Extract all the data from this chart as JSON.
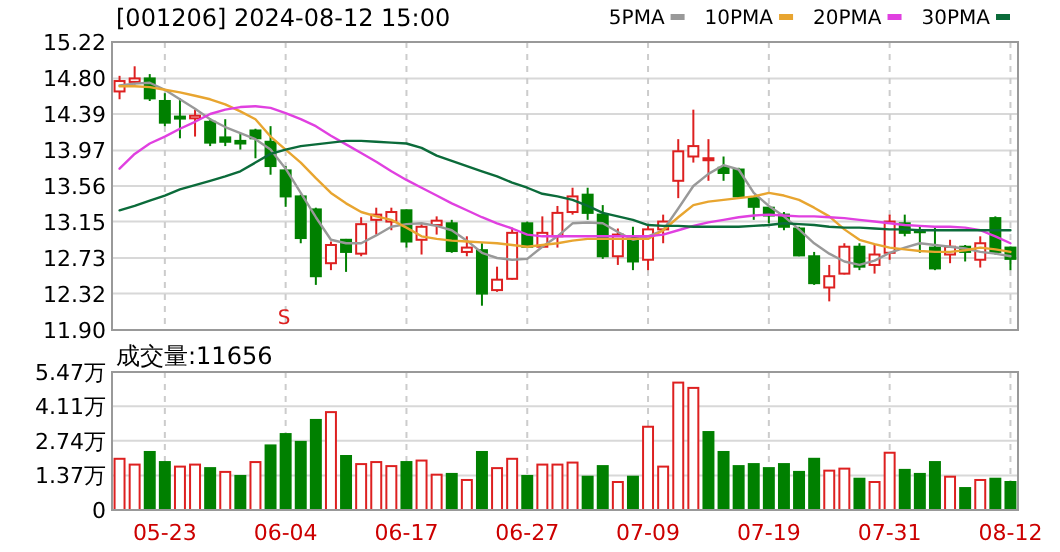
{
  "chart_data": [
    {
      "type": "candlestick",
      "title": "[001206] 2024-08-12 15:00",
      "categories": [
        null,
        null,
        null,
        null,
        null,
        null,
        null,
        null,
        null,
        null,
        null,
        null,
        null,
        null,
        null,
        null,
        null,
        null,
        null,
        null,
        null,
        null,
        null,
        null,
        null,
        null,
        null,
        null,
        null,
        null,
        null,
        null,
        null,
        null,
        null,
        null,
        null,
        null,
        null,
        null,
        null,
        null,
        null,
        null,
        null,
        null,
        null,
        null,
        null,
        null,
        null,
        null,
        null,
        null,
        null,
        null,
        null,
        null,
        null,
        null
      ],
      "ohlc": [
        [
          14.65,
          14.83,
          14.56,
          14.77
        ],
        [
          14.76,
          14.94,
          14.73,
          14.8
        ],
        [
          14.8,
          14.85,
          14.54,
          14.57
        ],
        [
          14.54,
          14.63,
          14.25,
          14.29
        ],
        [
          14.36,
          14.57,
          14.11,
          14.34
        ],
        [
          14.34,
          14.44,
          14.13,
          14.37
        ],
        [
          14.3,
          14.34,
          14.02,
          14.06
        ],
        [
          14.12,
          14.33,
          14.02,
          14.07
        ],
        [
          14.08,
          14.17,
          13.98,
          14.05
        ],
        [
          14.2,
          14.22,
          13.88,
          14.11
        ],
        [
          14.07,
          14.25,
          13.69,
          13.79
        ],
        [
          13.74,
          13.79,
          13.32,
          13.44
        ],
        [
          13.44,
          13.46,
          12.9,
          12.96
        ],
        [
          13.29,
          13.31,
          12.42,
          12.52
        ],
        [
          12.67,
          12.92,
          12.59,
          12.88
        ],
        [
          12.94,
          12.95,
          12.57,
          12.8
        ],
        [
          12.78,
          13.2,
          12.75,
          13.12
        ],
        [
          13.17,
          13.31,
          13.0,
          13.23
        ],
        [
          13.15,
          13.31,
          13.05,
          13.26
        ],
        [
          13.28,
          13.29,
          12.85,
          12.92
        ],
        [
          12.94,
          13.13,
          12.77,
          13.09
        ],
        [
          13.11,
          13.21,
          13.0,
          13.16
        ],
        [
          13.13,
          13.17,
          12.79,
          12.81
        ],
        [
          12.8,
          12.98,
          12.75,
          12.85
        ],
        [
          12.82,
          12.9,
          12.18,
          12.32
        ],
        [
          12.36,
          12.63,
          12.34,
          12.48
        ],
        [
          12.49,
          13.08,
          12.48,
          13.02
        ],
        [
          13.13,
          13.15,
          12.85,
          12.86
        ],
        [
          12.86,
          13.21,
          12.85,
          13.02
        ],
        [
          12.98,
          13.33,
          12.85,
          13.25
        ],
        [
          13.26,
          13.54,
          13.23,
          13.44
        ],
        [
          13.46,
          13.54,
          13.17,
          13.25
        ],
        [
          13.23,
          13.34,
          12.72,
          12.75
        ],
        [
          12.75,
          13.07,
          12.65,
          13.0
        ],
        [
          12.98,
          13.09,
          12.59,
          12.69
        ],
        [
          12.71,
          13.11,
          12.59,
          13.06
        ],
        [
          13.06,
          13.23,
          12.9,
          13.15
        ],
        [
          13.62,
          14.1,
          13.42,
          13.96
        ],
        [
          13.9,
          14.44,
          13.83,
          14.02
        ],
        [
          13.87,
          14.1,
          13.62,
          13.88
        ],
        [
          13.77,
          13.9,
          13.62,
          13.71
        ],
        [
          13.75,
          13.77,
          13.42,
          13.44
        ],
        [
          13.42,
          13.44,
          13.17,
          13.32
        ],
        [
          13.31,
          13.32,
          13.13,
          13.22
        ],
        [
          13.23,
          13.26,
          13.05,
          13.09
        ],
        [
          13.07,
          13.09,
          12.75,
          12.76
        ],
        [
          12.75,
          12.8,
          12.42,
          12.44
        ],
        [
          12.39,
          12.65,
          12.23,
          12.52
        ],
        [
          12.55,
          12.9,
          12.54,
          12.86
        ],
        [
          12.86,
          12.9,
          12.59,
          12.63
        ],
        [
          12.65,
          12.88,
          12.55,
          12.77
        ],
        [
          12.79,
          13.23,
          12.71,
          13.15
        ],
        [
          13.13,
          13.23,
          12.98,
          13.02
        ],
        [
          13.05,
          13.09,
          12.79,
          13.04
        ],
        [
          12.85,
          13.09,
          12.59,
          12.61
        ],
        [
          12.77,
          12.94,
          12.67,
          12.86
        ],
        [
          12.86,
          12.88,
          12.69,
          12.8
        ],
        [
          12.71,
          12.98,
          12.62,
          12.9
        ],
        [
          13.19,
          13.21,
          12.77,
          12.8
        ],
        [
          12.85,
          12.86,
          12.59,
          12.72
        ]
      ],
      "colors": [
        "#dd2020",
        "#dd2020",
        "#008000",
        "#008000",
        "#008000",
        "#dd2020",
        "#008000",
        "#008000",
        "#008000",
        "#008000",
        "#008000",
        "#008000",
        "#008000",
        "#008000",
        "#dd2020",
        "#008000",
        "#dd2020",
        "#dd2020",
        "#dd2020",
        "#008000",
        "#dd2020",
        "#dd2020",
        "#008000",
        "#dd2020",
        "#008000",
        "#dd2020",
        "#dd2020",
        "#008000",
        "#dd2020",
        "#dd2020",
        "#dd2020",
        "#008000",
        "#008000",
        "#dd2020",
        "#008000",
        "#dd2020",
        "#dd2020",
        "#dd2020",
        "#dd2020",
        "#dd2020",
        "#008000",
        "#008000",
        "#008000",
        "#008000",
        "#008000",
        "#008000",
        "#008000",
        "#dd2020",
        "#dd2020",
        "#008000",
        "#dd2020",
        "#dd2020",
        "#008000",
        "#008000",
        "#008000",
        "#dd2020",
        "#008000",
        "#dd2020",
        "#008000",
        "#008000"
      ],
      "series": [
        {
          "name": "5PMA",
          "type": "line",
          "color": "#999999",
          "values": [
            14.72,
            14.74,
            14.75,
            14.67,
            14.56,
            14.45,
            14.33,
            14.24,
            14.17,
            14.1,
            13.98,
            13.76,
            13.48,
            13.2,
            12.94,
            12.9,
            12.9,
            12.99,
            13.09,
            13.12,
            13.13,
            13.1,
            13.05,
            12.93,
            12.79,
            12.73,
            12.71,
            12.72,
            12.86,
            12.98,
            13.13,
            13.14,
            13.13,
            13.03,
            12.94,
            12.98,
            13.05,
            13.3,
            13.56,
            13.7,
            13.8,
            13.75,
            13.48,
            13.33,
            13.21,
            13.06,
            12.9,
            12.78,
            12.69,
            12.65,
            12.7,
            12.79,
            12.85,
            12.9,
            12.88,
            12.86,
            12.84,
            12.8,
            12.78,
            12.75
          ]
        },
        {
          "name": "10PMA",
          "type": "line",
          "color": "#e8a530",
          "values": [
            14.71,
            14.71,
            14.7,
            14.67,
            14.64,
            14.6,
            14.56,
            14.5,
            14.42,
            14.33,
            14.13,
            13.98,
            13.83,
            13.65,
            13.48,
            13.36,
            13.26,
            13.21,
            13.17,
            13.08,
            12.98,
            12.95,
            12.93,
            12.92,
            12.91,
            12.9,
            12.88,
            12.86,
            12.88,
            12.9,
            12.93,
            12.95,
            12.95,
            12.95,
            12.95,
            12.95,
            13.05,
            13.2,
            13.34,
            13.38,
            13.4,
            13.42,
            13.44,
            13.48,
            13.45,
            13.4,
            13.31,
            13.21,
            13.06,
            12.94,
            12.89,
            12.85,
            12.83,
            12.81,
            12.8,
            12.8,
            12.82,
            12.85,
            12.83,
            12.8
          ]
        },
        {
          "name": "20PMA",
          "type": "line",
          "color": "#e040e0",
          "values": [
            13.76,
            13.93,
            14.05,
            14.13,
            14.22,
            14.3,
            14.39,
            14.44,
            14.47,
            14.48,
            14.46,
            14.4,
            14.33,
            14.25,
            14.14,
            14.04,
            13.94,
            13.84,
            13.73,
            13.63,
            13.54,
            13.45,
            13.36,
            13.28,
            13.2,
            13.13,
            13.07,
            13.0,
            12.98,
            12.98,
            12.98,
            12.98,
            12.98,
            12.98,
            12.98,
            12.98,
            13.0,
            13.05,
            13.1,
            13.14,
            13.17,
            13.2,
            13.22,
            13.23,
            13.22,
            13.21,
            13.21,
            13.2,
            13.19,
            13.17,
            13.15,
            13.13,
            13.11,
            13.1,
            13.09,
            13.09,
            13.08,
            13.05,
            12.98,
            12.9
          ]
        },
        {
          "name": "30PMA",
          "type": "line",
          "color": "#0b6b3a",
          "values": [
            13.28,
            13.33,
            13.39,
            13.45,
            13.52,
            13.57,
            13.62,
            13.67,
            13.73,
            13.83,
            13.93,
            13.98,
            14.02,
            14.04,
            14.06,
            14.08,
            14.08,
            14.07,
            14.06,
            14.05,
            14.0,
            13.91,
            13.85,
            13.79,
            13.73,
            13.67,
            13.6,
            13.54,
            13.47,
            13.44,
            13.4,
            13.33,
            13.25,
            13.21,
            13.17,
            13.11,
            13.1,
            13.1,
            13.09,
            13.09,
            13.09,
            13.09,
            13.1,
            13.11,
            13.13,
            13.12,
            13.11,
            13.09,
            13.08,
            13.08,
            13.07,
            13.06,
            13.06,
            13.05,
            13.05,
            13.05,
            13.05,
            13.05,
            13.05,
            13.05
          ]
        }
      ],
      "ylim": [
        11.9,
        15.22
      ],
      "yticks": [
        {
          "value": 11.9,
          "label": "11.90"
        },
        12.32,
        12.73,
        13.15,
        13.56,
        13.97,
        14.39,
        {
          "value": 14.8,
          "label": "14.80"
        },
        15.22
      ],
      "grid": true,
      "legend": "top right",
      "tick_labels": "y",
      "annotations": [
        "S"
      ]
    },
    {
      "type": "bar",
      "title": "成交量:11656",
      "categories": [
        null,
        null,
        null,
        "05-23",
        null,
        null,
        null,
        null,
        null,
        null,
        null,
        "06-04",
        null,
        null,
        null,
        null,
        null,
        null,
        null,
        "06-17",
        null,
        null,
        null,
        null,
        null,
        null,
        null,
        "06-27",
        null,
        null,
        null,
        null,
        null,
        null,
        null,
        "07-09",
        null,
        null,
        null,
        null,
        null,
        null,
        null,
        "07-19",
        null,
        null,
        null,
        null,
        null,
        null,
        null,
        "07-31",
        null,
        null,
        null,
        null,
        null,
        null,
        null,
        "08-12"
      ],
      "values": [
        2.03,
        1.8,
        2.3,
        1.9,
        1.72,
        1.8,
        1.66,
        1.51,
        1.35,
        1.9,
        2.56,
        3.01,
        2.7,
        3.57,
        3.88,
        2.14,
        1.82,
        1.9,
        1.74,
        1.9,
        1.96,
        1.4,
        1.43,
        1.19,
        2.3,
        1.66,
        2.03,
        1.35,
        1.8,
        1.8,
        1.88,
        1.32,
        1.74,
        1.11,
        1.32,
        3.3,
        1.72,
        5.05,
        4.84,
        3.09,
        2.3,
        1.74,
        1.82,
        1.66,
        1.82,
        1.51,
        2.03,
        1.56,
        1.64,
        1.24,
        1.11,
        2.27,
        1.59,
        1.43,
        1.9,
        1.32,
        0.87,
        1.19,
        1.24,
        1.11
      ],
      "colors": [
        "#dd2020",
        "#dd2020",
        "#008000",
        "#008000",
        "#dd2020",
        "#dd2020",
        "#008000",
        "#dd2020",
        "#008000",
        "#dd2020",
        "#008000",
        "#008000",
        "#008000",
        "#008000",
        "#dd2020",
        "#008000",
        "#dd2020",
        "#dd2020",
        "#dd2020",
        "#008000",
        "#dd2020",
        "#dd2020",
        "#008000",
        "#dd2020",
        "#008000",
        "#dd2020",
        "#dd2020",
        "#008000",
        "#dd2020",
        "#dd2020",
        "#dd2020",
        "#008000",
        "#008000",
        "#dd2020",
        "#008000",
        "#dd2020",
        "#dd2020",
        "#dd2020",
        "#dd2020",
        "#008000",
        "#008000",
        "#008000",
        "#008000",
        "#008000",
        "#008000",
        "#008000",
        "#008000",
        "#dd2020",
        "#dd2020",
        "#008000",
        "#dd2020",
        "#dd2020",
        "#008000",
        "#008000",
        "#008000",
        "#dd2020",
        "#008000",
        "#dd2020",
        "#008000",
        "#008000"
      ],
      "ylim": [
        0,
        5.47
      ],
      "yticks": [
        0,
        {
          "value": 1.37,
          "label": "1.37万"
        },
        {
          "value": 2.74,
          "label": "2.74万"
        },
        {
          "value": 4.11,
          "label": "4.11万"
        },
        {
          "value": 5.47,
          "label": "5.47万"
        }
      ],
      "grid": true
    }
  ]
}
